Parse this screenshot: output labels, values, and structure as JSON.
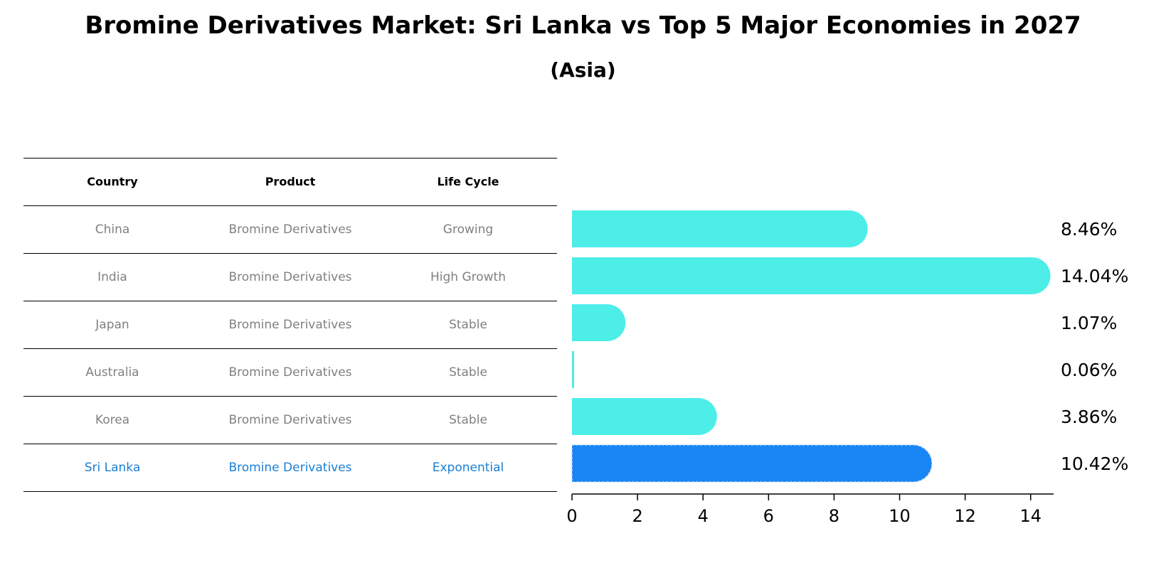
{
  "title": "Bromine Derivatives Market: Sri Lanka vs Top 5 Major Economies in 2027",
  "subtitle": "(Asia)",
  "table": {
    "headers": [
      "Country",
      "Product",
      "Life Cycle"
    ],
    "rows": [
      [
        "China",
        "Bromine Derivatives",
        "Growing"
      ],
      [
        "India",
        "Bromine Derivatives",
        "High Growth"
      ],
      [
        "Japan",
        "Bromine Derivatives",
        "Stable"
      ],
      [
        "Australia",
        "Bromine Derivatives",
        "Stable"
      ],
      [
        "Korea",
        "Bromine Derivatives",
        "Stable"
      ],
      [
        "Sri Lanka",
        "Bromine Derivatives",
        "Exponential"
      ]
    ]
  },
  "chart_data": {
    "type": "bar",
    "orientation": "horizontal",
    "categories": [
      "China",
      "India",
      "Japan",
      "Australia",
      "Korea",
      "Sri Lanka"
    ],
    "values": [
      8.46,
      14.04,
      1.07,
      0.06,
      3.86,
      10.42
    ],
    "value_labels": [
      "8.46%",
      "14.04%",
      "1.07%",
      "0.06%",
      "3.86%",
      "10.42%"
    ],
    "xlim": [
      0,
      14.7
    ],
    "xticks": [
      0,
      2,
      4,
      6,
      8,
      10,
      12,
      14
    ],
    "grid": false,
    "colors": {
      "default": "#4deee8",
      "highlight": "#1a85f5",
      "highlight_text": "#1a7fd4",
      "muted_text": "#808080"
    },
    "highlight_category": "Sri Lanka"
  }
}
